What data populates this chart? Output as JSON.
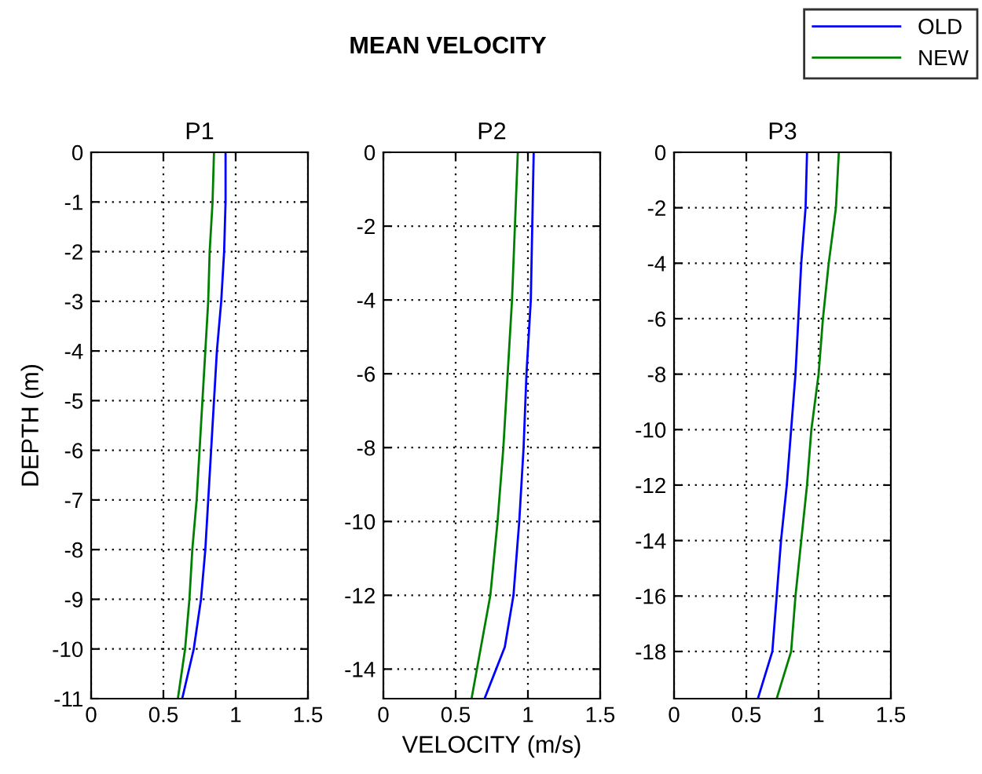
{
  "chart_data": [
    {
      "type": "line",
      "title": "P1",
      "ylabel": "DEPTH (m)",
      "annotations": [
        "MEAN VELOCITY"
      ],
      "xlim": [
        0,
        1.5
      ],
      "xticks": [
        0,
        0.5,
        1,
        1.5
      ],
      "ylim": [
        -11,
        0
      ],
      "yticks": [
        -11,
        -10,
        -9,
        -8,
        -7,
        -6,
        -5,
        -4,
        -3,
        -2,
        -1,
        0
      ],
      "grid": true,
      "line_style": "solid",
      "legend": "top right",
      "series": [
        {
          "name": "OLD",
          "color": "#0000ff",
          "x": [
            0.93,
            0.93,
            0.92,
            0.9,
            0.87,
            0.85,
            0.83,
            0.81,
            0.79,
            0.76,
            0.71,
            0.63
          ],
          "values": [
            0,
            -1,
            -2,
            -3,
            -4,
            -5,
            -6,
            -7,
            -8,
            -9,
            -10,
            -11
          ]
        },
        {
          "name": "NEW",
          "color": "#008000",
          "x": [
            0.85,
            0.84,
            0.82,
            0.81,
            0.79,
            0.77,
            0.75,
            0.73,
            0.7,
            0.68,
            0.65,
            0.6
          ],
          "values": [
            0,
            -1,
            -2,
            -3,
            -4,
            -5,
            -6,
            -7,
            -8,
            -9,
            -10,
            -11
          ]
        }
      ]
    },
    {
      "type": "line",
      "title": "P2",
      "xlabel": "VELOCITY (m/s)",
      "xlim": [
        0,
        1.5
      ],
      "xticks": [
        0,
        0.5,
        1,
        1.5
      ],
      "ylim": [
        -14.8,
        0
      ],
      "yticks": [
        -14,
        -12,
        -10,
        -8,
        -6,
        -4,
        -2,
        0
      ],
      "grid": true,
      "line_style": "solid",
      "series": [
        {
          "color": "#0000ff",
          "x": [
            1.04,
            1.03,
            1.02,
            0.99,
            0.97,
            0.94,
            0.9,
            0.84,
            0.7
          ],
          "values": [
            0,
            -2,
            -4,
            -6,
            -8,
            -10,
            -12,
            -13.4,
            -14.8
          ]
        },
        {
          "color": "#008000",
          "x": [
            0.93,
            0.91,
            0.89,
            0.86,
            0.83,
            0.79,
            0.74,
            0.61
          ],
          "values": [
            0,
            -2,
            -4,
            -6,
            -8,
            -10,
            -12,
            -14.8
          ]
        }
      ]
    },
    {
      "type": "line",
      "title": "P3",
      "xlim": [
        0,
        1.5
      ],
      "xticks": [
        0,
        0.5,
        1,
        1.5
      ],
      "ylim": [
        -19.7,
        0
      ],
      "yticks": [
        -18,
        -16,
        -14,
        -12,
        -10,
        -8,
        -6,
        -4,
        -2,
        0
      ],
      "grid": true,
      "line_style": "solid",
      "series": [
        {
          "color": "#0000ff",
          "x": [
            0.92,
            0.91,
            0.88,
            0.86,
            0.84,
            0.81,
            0.78,
            0.74,
            0.71,
            0.68,
            0.58
          ],
          "values": [
            0,
            -2,
            -4,
            -6,
            -8,
            -10,
            -12,
            -14,
            -16,
            -18,
            -19.7
          ]
        },
        {
          "color": "#008000",
          "x": [
            1.14,
            1.12,
            1.07,
            1.03,
            1.0,
            0.95,
            0.92,
            0.88,
            0.84,
            0.81,
            0.71
          ],
          "values": [
            0,
            -2,
            -4,
            -6,
            -8,
            -10,
            -12,
            -14,
            -16,
            -18,
            -19.7
          ]
        }
      ]
    }
  ]
}
